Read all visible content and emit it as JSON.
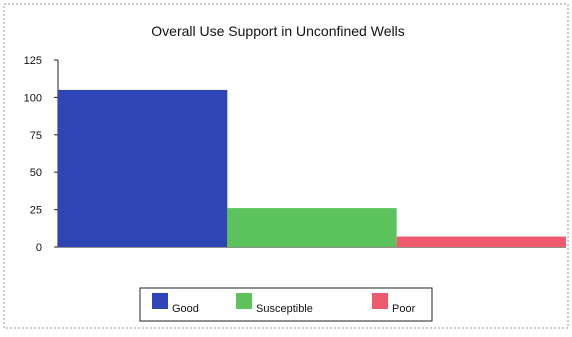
{
  "chart_data": {
    "type": "bar",
    "title": "Overall Use Support in Unconfined Wells",
    "xlabel": "",
    "ylabel": "",
    "categories": [
      "Good",
      "Susceptible",
      "Poor"
    ],
    "values": [
      105,
      26,
      7
    ],
    "colors": [
      "#2f45b5",
      "#5cc35c",
      "#ee5b6e"
    ],
    "ylim": [
      0,
      125
    ],
    "yticks": [
      "0",
      "25",
      "50",
      "75",
      "100",
      "125"
    ],
    "grid": false,
    "legend_position": "bottom",
    "legend": [
      "Good",
      "Susceptible",
      "Poor"
    ]
  }
}
